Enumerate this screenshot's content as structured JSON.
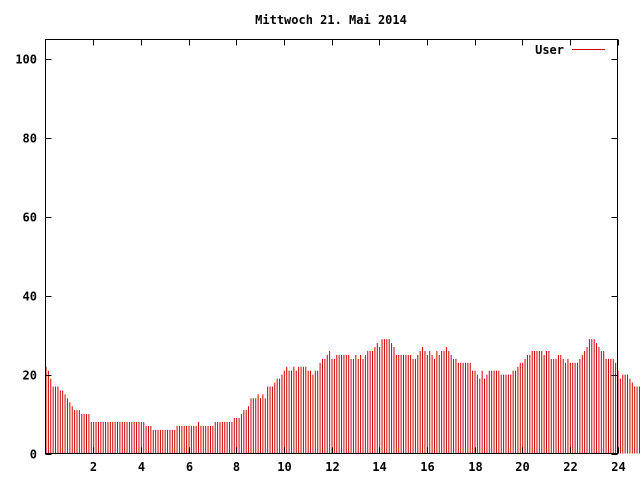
{
  "chart_data": {
    "type": "bar",
    "title": "Mittwoch 21. Mai 2014",
    "xlabel": "",
    "ylabel": "",
    "xlim": [
      0,
      24
    ],
    "ylim": [
      0,
      105
    ],
    "x_ticks": [
      "2",
      "4",
      "6",
      "8",
      "10",
      "12",
      "14",
      "16",
      "18",
      "20",
      "22",
      "24"
    ],
    "y_ticks": [
      "0",
      "20",
      "40",
      "60",
      "80",
      "100"
    ],
    "grid": false,
    "legend_position": "top-right",
    "series": [
      {
        "name": "User",
        "color": "#cc0000",
        "interval_hours": 0.1,
        "values": [
          22,
          21,
          19,
          17,
          17,
          17,
          16,
          16,
          15,
          14,
          13,
          12,
          11,
          11,
          11,
          10,
          10,
          10,
          10,
          8,
          8,
          8,
          8,
          8,
          8,
          8,
          8,
          8,
          8,
          8,
          8,
          8,
          8,
          8,
          8,
          8,
          8,
          8,
          8,
          8,
          8,
          8,
          7,
          7,
          7,
          6,
          6,
          6,
          6,
          6,
          6,
          6,
          6,
          6,
          6,
          7,
          7,
          7,
          7,
          7,
          7,
          7,
          7,
          7,
          8,
          7,
          7,
          7,
          7,
          7,
          7,
          8,
          8,
          8,
          8,
          8,
          8,
          8,
          8,
          9,
          9,
          9,
          10,
          11,
          11,
          12,
          14,
          14,
          14,
          15,
          14,
          15,
          14,
          17,
          17,
          17,
          18,
          19,
          19,
          20,
          21,
          22,
          21,
          21,
          22,
          21,
          22,
          22,
          22,
          22,
          21,
          21,
          20,
          21,
          21,
          23,
          24,
          24,
          25,
          26,
          24,
          24,
          25,
          25,
          25,
          25,
          25,
          25,
          24,
          24,
          25,
          24,
          25,
          24,
          25,
          26,
          26,
          26,
          27,
          28,
          27,
          29,
          29,
          29,
          29,
          28,
          27,
          25,
          25,
          25,
          25,
          25,
          25,
          25,
          24,
          24,
          25,
          26,
          27,
          26,
          25,
          26,
          25,
          24,
          26,
          25,
          26,
          26,
          27,
          26,
          25,
          24,
          24,
          23,
          23,
          23,
          23,
          23,
          23,
          21,
          21,
          20,
          19,
          21,
          19,
          20,
          21,
          21,
          21,
          21,
          21,
          20,
          20,
          20,
          20,
          20,
          21,
          21,
          22,
          23,
          23,
          24,
          25,
          25,
          26,
          26,
          26,
          26,
          26,
          25,
          26,
          26,
          24,
          24,
          24,
          25,
          25,
          24,
          23,
          24,
          23,
          23,
          23,
          23,
          24,
          25,
          26,
          27,
          29,
          29,
          29,
          28,
          27,
          26,
          26,
          24,
          24,
          24,
          24,
          23,
          21,
          19,
          20,
          20,
          20,
          19,
          18,
          17,
          17,
          17,
          17,
          17
        ]
      }
    ]
  }
}
